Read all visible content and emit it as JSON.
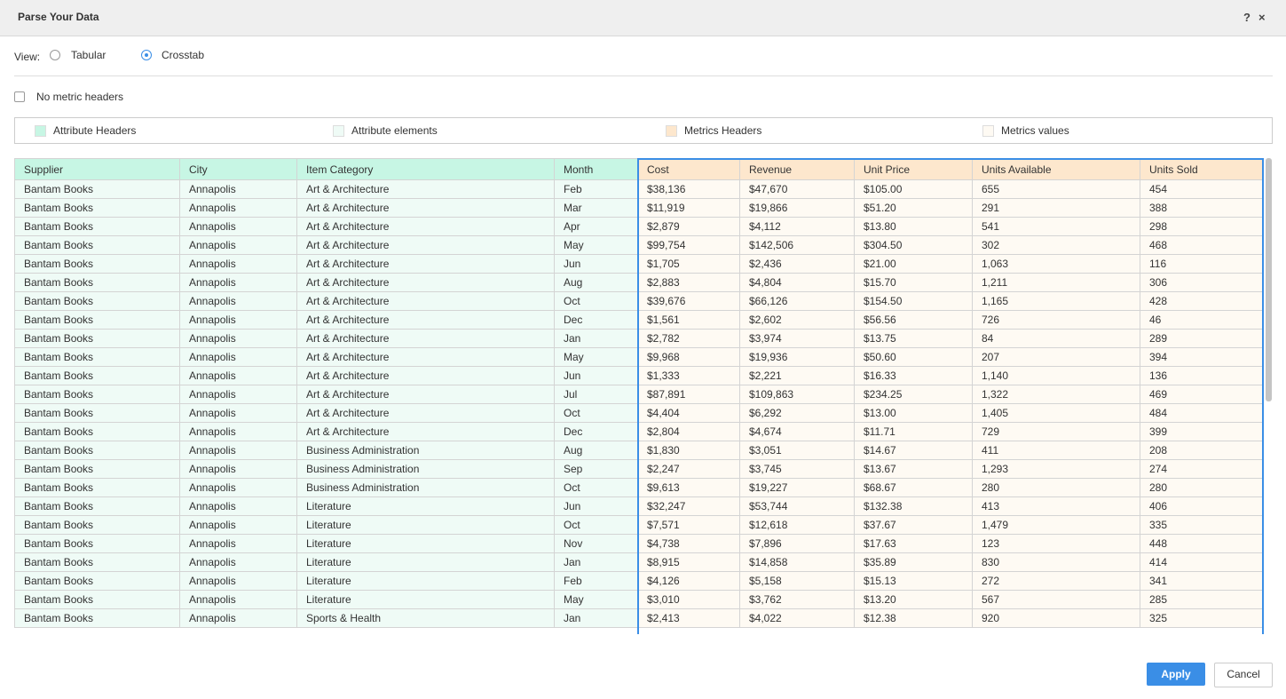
{
  "header": {
    "title": "Parse Your Data",
    "help": "?",
    "close": "×"
  },
  "view": {
    "label": "View:",
    "options": [
      "Tabular",
      "Crosstab"
    ],
    "selected": "Crosstab"
  },
  "no_metric_headers": "No metric headers",
  "legend": [
    "Attribute Headers",
    "Attribute elements",
    "Metrics Headers",
    "Metrics values"
  ],
  "table": {
    "columns": [
      "Supplier",
      "City",
      "Item Category",
      "Month",
      "Cost",
      "Revenue",
      "Unit Price",
      "Units Available",
      "Units Sold"
    ],
    "rows": [
      [
        "Bantam Books",
        "Annapolis",
        "Art & Architecture",
        "Feb",
        "$38,136",
        "$47,670",
        "$105.00",
        "655",
        "454"
      ],
      [
        "Bantam Books",
        "Annapolis",
        "Art & Architecture",
        "Mar",
        "$11,919",
        "$19,866",
        "$51.20",
        "291",
        "388"
      ],
      [
        "Bantam Books",
        "Annapolis",
        "Art & Architecture",
        "Apr",
        "$2,879",
        "$4,112",
        "$13.80",
        "541",
        "298"
      ],
      [
        "Bantam Books",
        "Annapolis",
        "Art & Architecture",
        "May",
        "$99,754",
        "$142,506",
        "$304.50",
        "302",
        "468"
      ],
      [
        "Bantam Books",
        "Annapolis",
        "Art & Architecture",
        "Jun",
        "$1,705",
        "$2,436",
        "$21.00",
        "1,063",
        "116"
      ],
      [
        "Bantam Books",
        "Annapolis",
        "Art & Architecture",
        "Aug",
        "$2,883",
        "$4,804",
        "$15.70",
        "1,211",
        "306"
      ],
      [
        "Bantam Books",
        "Annapolis",
        "Art & Architecture",
        "Oct",
        "$39,676",
        "$66,126",
        "$154.50",
        "1,165",
        "428"
      ],
      [
        "Bantam Books",
        "Annapolis",
        "Art & Architecture",
        "Dec",
        "$1,561",
        "$2,602",
        "$56.56",
        "726",
        "46"
      ],
      [
        "Bantam Books",
        "Annapolis",
        "Art & Architecture",
        "Jan",
        "$2,782",
        "$3,974",
        "$13.75",
        "84",
        "289"
      ],
      [
        "Bantam Books",
        "Annapolis",
        "Art & Architecture",
        "May",
        "$9,968",
        "$19,936",
        "$50.60",
        "207",
        "394"
      ],
      [
        "Bantam Books",
        "Annapolis",
        "Art & Architecture",
        "Jun",
        "$1,333",
        "$2,221",
        "$16.33",
        "1,140",
        "136"
      ],
      [
        "Bantam Books",
        "Annapolis",
        "Art & Architecture",
        "Jul",
        "$87,891",
        "$109,863",
        "$234.25",
        "1,322",
        "469"
      ],
      [
        "Bantam Books",
        "Annapolis",
        "Art & Architecture",
        "Oct",
        "$4,404",
        "$6,292",
        "$13.00",
        "1,405",
        "484"
      ],
      [
        "Bantam Books",
        "Annapolis",
        "Art & Architecture",
        "Dec",
        "$2,804",
        "$4,674",
        "$11.71",
        "729",
        "399"
      ],
      [
        "Bantam Books",
        "Annapolis",
        "Business Administration",
        "Aug",
        "$1,830",
        "$3,051",
        "$14.67",
        "411",
        "208"
      ],
      [
        "Bantam Books",
        "Annapolis",
        "Business Administration",
        "Sep",
        "$2,247",
        "$3,745",
        "$13.67",
        "1,293",
        "274"
      ],
      [
        "Bantam Books",
        "Annapolis",
        "Business Administration",
        "Oct",
        "$9,613",
        "$19,227",
        "$68.67",
        "280",
        "280"
      ],
      [
        "Bantam Books",
        "Annapolis",
        "Literature",
        "Jun",
        "$32,247",
        "$53,744",
        "$132.38",
        "413",
        "406"
      ],
      [
        "Bantam Books",
        "Annapolis",
        "Literature",
        "Oct",
        "$7,571",
        "$12,618",
        "$37.67",
        "1,479",
        "335"
      ],
      [
        "Bantam Books",
        "Annapolis",
        "Literature",
        "Nov",
        "$4,738",
        "$7,896",
        "$17.63",
        "123",
        "448"
      ],
      [
        "Bantam Books",
        "Annapolis",
        "Literature",
        "Jan",
        "$8,915",
        "$14,858",
        "$35.89",
        "830",
        "414"
      ],
      [
        "Bantam Books",
        "Annapolis",
        "Literature",
        "Feb",
        "$4,126",
        "$5,158",
        "$15.13",
        "272",
        "341"
      ],
      [
        "Bantam Books",
        "Annapolis",
        "Literature",
        "May",
        "$3,010",
        "$3,762",
        "$13.20",
        "567",
        "285"
      ],
      [
        "Bantam Books",
        "Annapolis",
        "Sports & Health",
        "Jan",
        "$2,413",
        "$4,022",
        "$12.38",
        "920",
        "325"
      ]
    ]
  },
  "buttons": {
    "apply": "Apply",
    "cancel": "Cancel"
  }
}
